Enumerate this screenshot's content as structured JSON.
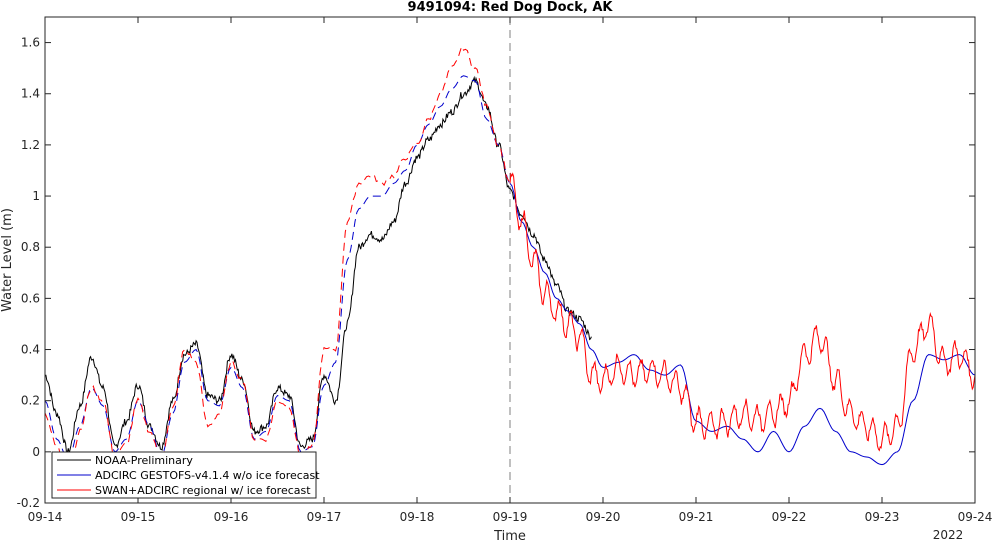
{
  "chart_data": {
    "type": "line",
    "title": "9491094: Red Dog Dock, AK",
    "xlabel": "Time",
    "ylabel": "Water Level (m)",
    "x_tick_labels": [
      "09-14",
      "09-15",
      "09-16",
      "09-17",
      "09-18",
      "09-19",
      "09-20",
      "09-21",
      "09-22",
      "09-23",
      "09-24"
    ],
    "x_secondary_label": "2022",
    "xlim_days": [
      14,
      24
    ],
    "ylim": [
      -0.2,
      1.7
    ],
    "y_ticks": [
      -0.2,
      0,
      0.2,
      0.4,
      0.6,
      0.8,
      1,
      1.2,
      1.4,
      1.6
    ],
    "y_tick_labels": [
      "-0.2",
      "0",
      "0.2",
      "0.4",
      "0.6",
      "0.8",
      "1",
      "1.2",
      "1.4",
      "1.6"
    ],
    "grid": false,
    "legend_position": "bottom-left",
    "vertical_marker": {
      "x": "09-19",
      "style": "dashed",
      "color": "#808080"
    },
    "series": [
      {
        "name": "NOAA-Preliminary",
        "color": "#000000",
        "style": "solid",
        "points": [
          [
            "09-14 00:00",
            0.3
          ],
          [
            "09-14 03:00",
            0.15
          ],
          [
            "09-14 06:00",
            0.0
          ],
          [
            "09-14 09:00",
            0.18
          ],
          [
            "09-14 12:00",
            0.37
          ],
          [
            "09-14 15:00",
            0.25
          ],
          [
            "09-14 18:00",
            0.02
          ],
          [
            "09-14 21:00",
            0.12
          ],
          [
            "09-15 00:00",
            0.26
          ],
          [
            "09-15 03:00",
            0.1
          ],
          [
            "09-15 06:00",
            0.02
          ],
          [
            "09-15 09:00",
            0.2
          ],
          [
            "09-15 12:00",
            0.38
          ],
          [
            "09-15 15:00",
            0.42
          ],
          [
            "09-15 18:00",
            0.22
          ],
          [
            "09-15 21:00",
            0.2
          ],
          [
            "09-16 00:00",
            0.38
          ],
          [
            "09-16 03:00",
            0.28
          ],
          [
            "09-16 06:00",
            0.08
          ],
          [
            "09-16 09:00",
            0.1
          ],
          [
            "09-16 12:00",
            0.25
          ],
          [
            "09-16 15:00",
            0.22
          ],
          [
            "09-16 18:00",
            0.02
          ],
          [
            "09-16 21:00",
            0.05
          ],
          [
            "09-17 00:00",
            0.3
          ],
          [
            "09-17 03:00",
            0.2
          ],
          [
            "09-17 06:00",
            0.5
          ],
          [
            "09-17 09:00",
            0.8
          ],
          [
            "09-17 12:00",
            0.85
          ],
          [
            "09-17 15:00",
            0.83
          ],
          [
            "09-17 18:00",
            0.9
          ],
          [
            "09-17 21:00",
            1.05
          ],
          [
            "09-18 00:00",
            1.15
          ],
          [
            "09-18 03:00",
            1.22
          ],
          [
            "09-18 06:00",
            1.28
          ],
          [
            "09-18 09:00",
            1.33
          ],
          [
            "09-18 12:00",
            1.4
          ],
          [
            "09-18 15:00",
            1.45
          ],
          [
            "09-18 18:00",
            1.35
          ],
          [
            "09-18 21:00",
            1.2
          ],
          [
            "09-19 00:00",
            1.02
          ],
          [
            "09-19 03:00",
            0.93
          ],
          [
            "09-19 06:00",
            0.85
          ],
          [
            "09-19 09:00",
            0.75
          ],
          [
            "09-19 12:00",
            0.65
          ],
          [
            "09-19 15:00",
            0.55
          ],
          [
            "09-19 18:00",
            0.52
          ],
          [
            "09-19 21:00",
            0.45
          ]
        ]
      },
      {
        "name": "ADCIRC GESTOFS-v4.1.4 w/o ice forecast",
        "color": "#0000cc",
        "style": "dashed-then-solid",
        "points": [
          [
            "09-14 00:00",
            0.2
          ],
          [
            "09-14 03:00",
            0.05
          ],
          [
            "09-14 06:00",
            -0.03
          ],
          [
            "09-14 09:00",
            0.1
          ],
          [
            "09-14 12:00",
            0.25
          ],
          [
            "09-14 15:00",
            0.18
          ],
          [
            "09-14 18:00",
            0.0
          ],
          [
            "09-14 21:00",
            0.05
          ],
          [
            "09-15 00:00",
            0.2
          ],
          [
            "09-15 03:00",
            0.1
          ],
          [
            "09-15 06:00",
            -0.02
          ],
          [
            "09-15 09:00",
            0.15
          ],
          [
            "09-15 12:00",
            0.35
          ],
          [
            "09-15 15:00",
            0.4
          ],
          [
            "09-15 18:00",
            0.2
          ],
          [
            "09-15 21:00",
            0.18
          ],
          [
            "09-16 00:00",
            0.33
          ],
          [
            "09-16 03:00",
            0.25
          ],
          [
            "09-16 06:00",
            0.05
          ],
          [
            "09-16 09:00",
            0.08
          ],
          [
            "09-16 12:00",
            0.22
          ],
          [
            "09-16 15:00",
            0.2
          ],
          [
            "09-16 18:00",
            0.0
          ],
          [
            "09-16 21:00",
            0.02
          ],
          [
            "09-17 00:00",
            0.26
          ],
          [
            "09-17 03:00",
            0.35
          ],
          [
            "09-17 06:00",
            0.75
          ],
          [
            "09-17 09:00",
            0.95
          ],
          [
            "09-17 12:00",
            1.0
          ],
          [
            "09-17 15:00",
            1.0
          ],
          [
            "09-17 18:00",
            1.05
          ],
          [
            "09-17 21:00",
            1.1
          ],
          [
            "09-18 00:00",
            1.2
          ],
          [
            "09-18 03:00",
            1.28
          ],
          [
            "09-18 06:00",
            1.35
          ],
          [
            "09-18 09:00",
            1.42
          ],
          [
            "09-18 12:00",
            1.47
          ],
          [
            "09-18 15:00",
            1.45
          ],
          [
            "09-18 18:00",
            1.3
          ],
          [
            "09-18 21:00",
            1.2
          ],
          [
            "09-19 00:00",
            1.05
          ],
          [
            "09-19 03:00",
            0.9
          ],
          [
            "09-19 06:00",
            0.8
          ],
          [
            "09-19 09:00",
            0.7
          ],
          [
            "09-19 12:00",
            0.6
          ],
          [
            "09-19 15:00",
            0.55
          ],
          [
            "09-19 18:00",
            0.5
          ],
          [
            "09-19 21:00",
            0.4
          ],
          [
            "09-20 00:00",
            0.33
          ],
          [
            "09-20 04:00",
            0.35
          ],
          [
            "09-20 08:00",
            0.38
          ],
          [
            "09-20 12:00",
            0.32
          ],
          [
            "09-20 16:00",
            0.3
          ],
          [
            "09-20 20:00",
            0.34
          ],
          [
            "09-21 00:00",
            0.12
          ],
          [
            "09-21 04:00",
            0.08
          ],
          [
            "09-21 08:00",
            0.1
          ],
          [
            "09-21 12:00",
            0.05
          ],
          [
            "09-21 16:00",
            0.0
          ],
          [
            "09-21 20:00",
            0.08
          ],
          [
            "09-22 00:00",
            0.0
          ],
          [
            "09-22 04:00",
            0.1
          ],
          [
            "09-22 08:00",
            0.17
          ],
          [
            "09-22 12:00",
            0.08
          ],
          [
            "09-22 16:00",
            0.0
          ],
          [
            "09-22 20:00",
            -0.02
          ],
          [
            "09-23 00:00",
            -0.05
          ],
          [
            "09-23 04:00",
            0.0
          ],
          [
            "09-23 08:00",
            0.2
          ],
          [
            "09-23 12:00",
            0.38
          ],
          [
            "09-23 16:00",
            0.36
          ],
          [
            "09-23 20:00",
            0.38
          ],
          [
            "09-24 00:00",
            0.3
          ]
        ]
      },
      {
        "name": "SWAN+ADCIRC regional w/ ice forecast",
        "color": "#ff0000",
        "style": "dashed-then-solid",
        "points": [
          [
            "09-14 00:00",
            0.15
          ],
          [
            "09-14 03:00",
            0.02
          ],
          [
            "09-14 06:00",
            -0.1
          ],
          [
            "09-14 09:00",
            0.08
          ],
          [
            "09-14 12:00",
            0.25
          ],
          [
            "09-14 15:00",
            0.2
          ],
          [
            "09-14 18:00",
            -0.02
          ],
          [
            "09-14 21:00",
            0.03
          ],
          [
            "09-15 00:00",
            0.2
          ],
          [
            "09-15 03:00",
            0.08
          ],
          [
            "09-15 06:00",
            -0.03
          ],
          [
            "09-15 09:00",
            0.17
          ],
          [
            "09-15 12:00",
            0.4
          ],
          [
            "09-15 15:00",
            0.35
          ],
          [
            "09-15 18:00",
            0.1
          ],
          [
            "09-15 21:00",
            0.15
          ],
          [
            "09-16 00:00",
            0.35
          ],
          [
            "09-16 03:00",
            0.28
          ],
          [
            "09-16 06:00",
            0.05
          ],
          [
            "09-16 09:00",
            0.05
          ],
          [
            "09-16 12:00",
            0.2
          ],
          [
            "09-16 15:00",
            0.18
          ],
          [
            "09-16 18:00",
            -0.02
          ],
          [
            "09-16 21:00",
            0.02
          ],
          [
            "09-17 00:00",
            0.4
          ],
          [
            "09-17 03:00",
            0.4
          ],
          [
            "09-17 06:00",
            0.9
          ],
          [
            "09-17 09:00",
            1.05
          ],
          [
            "09-17 12:00",
            1.08
          ],
          [
            "09-17 15:00",
            1.05
          ],
          [
            "09-17 18:00",
            1.08
          ],
          [
            "09-17 21:00",
            1.15
          ],
          [
            "09-18 00:00",
            1.2
          ],
          [
            "09-18 03:00",
            1.3
          ],
          [
            "09-18 06:00",
            1.4
          ],
          [
            "09-18 09:00",
            1.5
          ],
          [
            "09-18 12:00",
            1.58
          ],
          [
            "09-18 15:00",
            1.5
          ],
          [
            "09-18 18:00",
            1.35
          ],
          [
            "09-18 21:00",
            1.2
          ],
          [
            "09-19 00:00",
            1.05
          ],
          [
            "09-19 03:00",
            0.9
          ],
          [
            "09-19 06:00",
            0.75
          ],
          [
            "09-19 09:00",
            0.62
          ],
          [
            "09-19 12:00",
            0.55
          ],
          [
            "09-19 15:00",
            0.5
          ],
          [
            "09-19 18:00",
            0.45
          ],
          [
            "09-19 21:00",
            0.3
          ],
          [
            "09-20 00:00",
            0.28
          ],
          [
            "09-20 04:00",
            0.33
          ],
          [
            "09-20 08:00",
            0.3
          ],
          [
            "09-20 12:00",
            0.32
          ],
          [
            "09-20 16:00",
            0.3
          ],
          [
            "09-20 20:00",
            0.25
          ],
          [
            "09-21 00:00",
            0.12
          ],
          [
            "09-21 04:00",
            0.1
          ],
          [
            "09-21 08:00",
            0.12
          ],
          [
            "09-21 12:00",
            0.15
          ],
          [
            "09-21 16:00",
            0.13
          ],
          [
            "09-21 20:00",
            0.15
          ],
          [
            "09-22 00:00",
            0.2
          ],
          [
            "09-22 04:00",
            0.38
          ],
          [
            "09-22 08:00",
            0.45
          ],
          [
            "09-22 12:00",
            0.28
          ],
          [
            "09-22 16:00",
            0.15
          ],
          [
            "09-22 20:00",
            0.1
          ],
          [
            "09-23 00:00",
            0.05
          ],
          [
            "09-23 04:00",
            0.1
          ],
          [
            "09-23 08:00",
            0.4
          ],
          [
            "09-23 12:00",
            0.5
          ],
          [
            "09-23 16:00",
            0.35
          ],
          [
            "09-23 20:00",
            0.38
          ],
          [
            "09-24 00:00",
            0.3
          ]
        ]
      }
    ]
  }
}
